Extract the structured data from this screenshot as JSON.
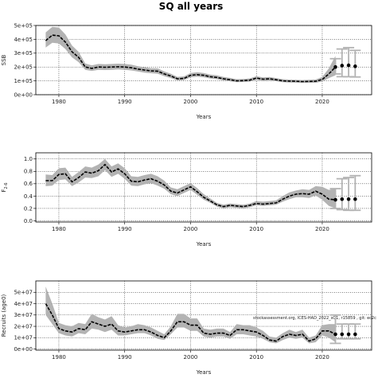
{
  "title": "SQ all years",
  "credit": "stockassessment.org, ICES-HAD_2022_sQ1, r15859 , git: ec2c",
  "colors": {
    "band": "#b3b3b3",
    "line": "#000000",
    "projection_bar": "#b3b3b3",
    "projection_point": "#000000"
  },
  "chart_data": [
    {
      "type": "line",
      "name": "ssb",
      "ylabel": "SSB",
      "xlabel": "Years",
      "ylim": [
        0,
        500000
      ],
      "yticks": [
        0,
        100000,
        200000,
        300000,
        400000,
        500000
      ],
      "ytick_labels": [
        "0e+00",
        "1e+05",
        "2e+05",
        "3e+05",
        "4e+05",
        "5e+05"
      ],
      "xlim": [
        1976.5,
        2027.5
      ],
      "xticks": [
        1980,
        1990,
        2000,
        2010,
        2020
      ],
      "xtick_labels": [
        "1980",
        "1990",
        "2000",
        "2010",
        "2020"
      ],
      "grid": "dotted at x ticks",
      "x": [
        1978,
        1979,
        1980,
        1981,
        1982,
        1983,
        1984,
        1985,
        1986,
        1987,
        1988,
        1989,
        1990,
        1991,
        1992,
        1993,
        1994,
        1995,
        1996,
        1997,
        1998,
        1999,
        2000,
        2001,
        2002,
        2003,
        2004,
        2005,
        2006,
        2007,
        2008,
        2009,
        2010,
        2011,
        2012,
        2013,
        2014,
        2015,
        2016,
        2017,
        2018,
        2019,
        2020,
        2021,
        2022
      ],
      "estimate": [
        390000,
        430000,
        425000,
        380000,
        310000,
        270000,
        200000,
        190000,
        200000,
        198000,
        200000,
        202000,
        200000,
        195000,
        185000,
        178000,
        172000,
        170000,
        150000,
        135000,
        115000,
        118000,
        140000,
        145000,
        140000,
        130000,
        125000,
        115000,
        108000,
        100000,
        102000,
        105000,
        120000,
        112000,
        115000,
        108000,
        100000,
        98000,
        97000,
        95000,
        96000,
        97000,
        110000,
        150000,
        200000
      ],
      "lower": [
        340000,
        375000,
        370000,
        330000,
        270000,
        235000,
        180000,
        172000,
        180000,
        178000,
        180000,
        182000,
        180000,
        175000,
        167000,
        160000,
        155000,
        152000,
        134000,
        120000,
        103000,
        106000,
        126000,
        130000,
        126000,
        117000,
        112000,
        103000,
        96000,
        90000,
        92000,
        94000,
        108000,
        100000,
        103000,
        97000,
        90000,
        88000,
        87000,
        85000,
        86000,
        86000,
        95000,
        120000,
        140000
      ],
      "upper": [
        450000,
        490000,
        485000,
        435000,
        355000,
        310000,
        225000,
        212000,
        222000,
        220000,
        222000,
        224000,
        222000,
        217000,
        206000,
        198000,
        191000,
        190000,
        168000,
        152000,
        129000,
        132000,
        157000,
        162000,
        157000,
        145000,
        140000,
        129000,
        121000,
        112000,
        114000,
        118000,
        134000,
        125000,
        128000,
        120000,
        112000,
        109000,
        108000,
        106000,
        108000,
        110000,
        128000,
        190000,
        280000
      ],
      "projection": [
        {
          "x": 2022,
          "y": 200000,
          "lower": 150000,
          "upper": 260000
        },
        {
          "x": 2023,
          "y": 210000,
          "lower": 130000,
          "upper": 330000
        },
        {
          "x": 2024,
          "y": 212000,
          "lower": 130000,
          "upper": 340000
        },
        {
          "x": 2025,
          "y": 205000,
          "lower": 128000,
          "upper": 320000
        }
      ]
    },
    {
      "type": "line",
      "name": "fbar",
      "ylabel": "F2-6",
      "ylabel_main": "F",
      "ylabel_sub": "2-6",
      "xlabel": "Years",
      "ylim": [
        -0.02,
        1.1
      ],
      "yticks": [
        0.0,
        0.2,
        0.4,
        0.6,
        0.8,
        1.0
      ],
      "ytick_labels": [
        "0.0",
        "0.2",
        "0.4",
        "0.6",
        "0.8",
        "1.0"
      ],
      "xlim": [
        1976.5,
        2027.5
      ],
      "xticks": [
        1980,
        1990,
        2000,
        2010,
        2020
      ],
      "xtick_labels": [
        "1980",
        "1990",
        "2000",
        "2010",
        "2020"
      ],
      "grid": "dotted at x ticks",
      "x": [
        1978,
        1979,
        1980,
        1981,
        1982,
        1983,
        1984,
        1985,
        1986,
        1987,
        1988,
        1989,
        1990,
        1991,
        1992,
        1993,
        1994,
        1995,
        1996,
        1997,
        1998,
        1999,
        2000,
        2001,
        2002,
        2003,
        2004,
        2005,
        2006,
        2007,
        2008,
        2009,
        2010,
        2011,
        2012,
        2013,
        2014,
        2015,
        2016,
        2017,
        2018,
        2019,
        2020,
        2021,
        2022
      ],
      "estimate": [
        0.65,
        0.65,
        0.75,
        0.76,
        0.63,
        0.7,
        0.79,
        0.77,
        0.81,
        0.91,
        0.79,
        0.84,
        0.76,
        0.64,
        0.63,
        0.66,
        0.68,
        0.64,
        0.58,
        0.48,
        0.45,
        0.5,
        0.55,
        0.47,
        0.38,
        0.32,
        0.26,
        0.23,
        0.25,
        0.24,
        0.23,
        0.25,
        0.28,
        0.27,
        0.28,
        0.29,
        0.35,
        0.4,
        0.43,
        0.44,
        0.43,
        0.48,
        0.43,
        0.35,
        0.34
      ],
      "lower": [
        0.56,
        0.57,
        0.66,
        0.67,
        0.56,
        0.62,
        0.7,
        0.69,
        0.72,
        0.82,
        0.71,
        0.76,
        0.68,
        0.57,
        0.56,
        0.59,
        0.61,
        0.57,
        0.52,
        0.43,
        0.4,
        0.45,
        0.5,
        0.42,
        0.34,
        0.29,
        0.23,
        0.2,
        0.22,
        0.21,
        0.2,
        0.22,
        0.25,
        0.24,
        0.25,
        0.26,
        0.31,
        0.35,
        0.38,
        0.38,
        0.37,
        0.41,
        0.34,
        0.24,
        0.2
      ],
      "upper": [
        0.75,
        0.74,
        0.85,
        0.86,
        0.71,
        0.79,
        0.88,
        0.86,
        0.91,
        1.0,
        0.88,
        0.93,
        0.85,
        0.72,
        0.71,
        0.74,
        0.76,
        0.72,
        0.65,
        0.54,
        0.51,
        0.56,
        0.61,
        0.53,
        0.43,
        0.36,
        0.29,
        0.26,
        0.28,
        0.27,
        0.26,
        0.28,
        0.32,
        0.31,
        0.32,
        0.33,
        0.4,
        0.46,
        0.49,
        0.51,
        0.5,
        0.56,
        0.55,
        0.5,
        0.52
      ],
      "projection": [
        {
          "x": 2022,
          "y": 0.34,
          "lower": 0.2,
          "upper": 0.52
        },
        {
          "x": 2023,
          "y": 0.35,
          "lower": 0.18,
          "upper": 0.68
        },
        {
          "x": 2024,
          "y": 0.35,
          "lower": 0.17,
          "upper": 0.7
        },
        {
          "x": 2025,
          "y": 0.35,
          "lower": 0.17,
          "upper": 0.73
        }
      ]
    },
    {
      "type": "line",
      "name": "recruitment",
      "ylabel": "Recruits (age0)",
      "xlabel": "Years",
      "ylim": [
        -1000000,
        60000000
      ],
      "yticks": [
        0,
        10000000,
        20000000,
        30000000,
        40000000,
        50000000
      ],
      "ytick_labels": [
        "0e+00",
        "1e+07",
        "2e+07",
        "3e+07",
        "4e+07",
        "5e+07"
      ],
      "xlim": [
        1976.5,
        2027.5
      ],
      "xticks": [
        1980,
        1990,
        2000,
        2010,
        2020
      ],
      "xtick_labels": [
        "1980",
        "1990",
        "2000",
        "2010",
        "2020"
      ],
      "grid": "dotted at x ticks",
      "x": [
        1978,
        1979,
        1980,
        1981,
        1982,
        1983,
        1984,
        1985,
        1986,
        1987,
        1988,
        1989,
        1990,
        1991,
        1992,
        1993,
        1994,
        1995,
        1996,
        1997,
        1998,
        1999,
        2000,
        2001,
        2002,
        2003,
        2004,
        2005,
        2006,
        2007,
        2008,
        2009,
        2010,
        2011,
        2012,
        2013,
        2014,
        2015,
        2016,
        2017,
        2018,
        2019,
        2020,
        2021,
        2022
      ],
      "estimate": [
        40000000,
        30000000,
        18000000,
        16000000,
        15000000,
        18000000,
        17000000,
        24000000,
        22000000,
        20000000,
        22000000,
        16000000,
        15000000,
        16000000,
        17000000,
        17000000,
        15000000,
        12000000,
        10000000,
        16000000,
        24000000,
        24000000,
        21000000,
        21000000,
        14000000,
        13000000,
        14000000,
        14000000,
        12000000,
        17000000,
        17000000,
        16000000,
        15000000,
        12000000,
        8000000,
        7000000,
        11000000,
        13000000,
        12000000,
        13000000,
        7000000,
        9000000,
        16000000,
        16000000,
        13000000
      ],
      "lower": [
        30000000,
        22000000,
        14000000,
        12000000,
        11000000,
        14000000,
        13000000,
        18000000,
        17000000,
        15000000,
        17000000,
        12000000,
        12000000,
        13000000,
        14000000,
        14000000,
        12000000,
        9000000,
        8000000,
        13000000,
        19000000,
        19000000,
        16000000,
        16000000,
        11000000,
        10000000,
        11000000,
        11000000,
        9000000,
        13000000,
        13000000,
        12000000,
        11000000,
        9000000,
        6000000,
        5000000,
        8000000,
        10000000,
        9000000,
        10000000,
        5000000,
        6000000,
        12000000,
        10000000,
        6000000
      ],
      "upper": [
        55000000,
        40000000,
        23000000,
        21000000,
        20000000,
        23000000,
        22000000,
        31000000,
        28000000,
        26000000,
        29000000,
        21000000,
        19000000,
        20000000,
        22000000,
        21000000,
        19000000,
        16000000,
        13000000,
        20000000,
        31000000,
        31000000,
        27000000,
        27000000,
        18000000,
        17000000,
        18000000,
        18000000,
        15000000,
        22000000,
        21000000,
        21000000,
        19000000,
        16000000,
        11000000,
        10000000,
        14000000,
        17000000,
        15000000,
        17000000,
        10000000,
        12000000,
        21000000,
        22000000,
        22000000
      ],
      "projection": [
        {
          "x": 2022,
          "y": 13000000,
          "lower": 5000000,
          "upper": 30000000
        },
        {
          "x": 2023,
          "y": 13000000,
          "lower": 9000000,
          "upper": 22000000
        },
        {
          "x": 2024,
          "y": 13000000,
          "lower": 9000000,
          "upper": 22000000
        },
        {
          "x": 2025,
          "y": 13000000,
          "lower": 9000000,
          "upper": 22000000
        }
      ]
    }
  ]
}
